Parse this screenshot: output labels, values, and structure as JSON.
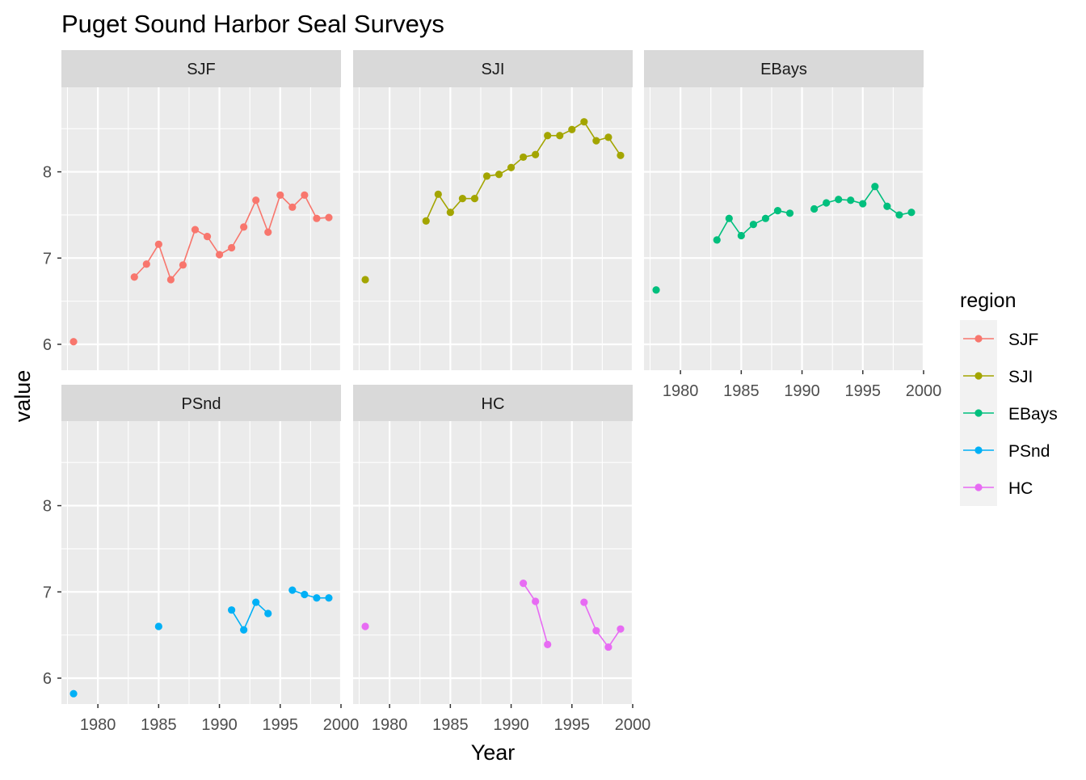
{
  "chart_data": {
    "type": "line",
    "title": "Puget Sound Harbor Seal Surveys",
    "xlabel": "Year",
    "ylabel": "value",
    "xlim": [
      1977,
      2000
    ],
    "ylim": [
      5.7,
      8.98
    ],
    "xticks": [
      1980,
      1985,
      1990,
      1995,
      2000
    ],
    "yticks": [
      6,
      7,
      8
    ],
    "grid": true,
    "legend": {
      "title": "region",
      "position": "right",
      "entries": [
        "SJF",
        "SJI",
        "EBays",
        "PSnd",
        "HC"
      ]
    },
    "panels": [
      {
        "name": "SJF",
        "color": "#F8766D",
        "points": [
          [
            1978,
            6.03
          ],
          [
            1983,
            6.78
          ],
          [
            1984,
            6.93
          ],
          [
            1985,
            7.16
          ],
          [
            1986,
            6.75
          ],
          [
            1987,
            6.92
          ],
          [
            1988,
            7.33
          ],
          [
            1989,
            7.25
          ],
          [
            1990,
            7.04
          ],
          [
            1991,
            7.12
          ],
          [
            1992,
            7.36
          ],
          [
            1993,
            7.67
          ],
          [
            1994,
            7.3
          ],
          [
            1995,
            7.73
          ],
          [
            1996,
            7.59
          ],
          [
            1997,
            7.73
          ],
          [
            1998,
            7.46
          ],
          [
            1999,
            7.47
          ]
        ]
      },
      {
        "name": "SJI",
        "color": "#A3A500",
        "points": [
          [
            1978,
            6.75
          ],
          [
            1983,
            7.43
          ],
          [
            1984,
            7.74
          ],
          [
            1985,
            7.53
          ],
          [
            1986,
            7.69
          ],
          [
            1987,
            7.69
          ],
          [
            1988,
            7.95
          ],
          [
            1989,
            7.97
          ],
          [
            1990,
            8.05
          ],
          [
            1991,
            8.17
          ],
          [
            1992,
            8.2
          ],
          [
            1993,
            8.42
          ],
          [
            1994,
            8.42
          ],
          [
            1995,
            8.49
          ],
          [
            1996,
            8.58
          ],
          [
            1997,
            8.36
          ],
          [
            1998,
            8.4
          ],
          [
            1999,
            8.19
          ]
        ]
      },
      {
        "name": "EBays",
        "color": "#00BF7D",
        "points": [
          [
            1978,
            6.63
          ],
          [
            1983,
            7.21
          ],
          [
            1984,
            7.46
          ],
          [
            1985,
            7.26
          ],
          [
            1986,
            7.39
          ],
          [
            1987,
            7.46
          ],
          [
            1988,
            7.55
          ],
          [
            1989,
            7.52
          ],
          [
            1990,
            null
          ],
          [
            1991,
            7.57
          ],
          [
            1992,
            7.64
          ],
          [
            1993,
            7.68
          ],
          [
            1994,
            7.67
          ],
          [
            1995,
            7.63
          ],
          [
            1996,
            7.83
          ],
          [
            1997,
            7.6
          ],
          [
            1998,
            7.5
          ],
          [
            1999,
            7.53
          ]
        ]
      },
      {
        "name": "PSnd",
        "color": "#00B0F6",
        "points": [
          [
            1978,
            5.82
          ],
          [
            1985,
            6.6
          ],
          [
            1991,
            6.79
          ],
          [
            1992,
            6.56
          ],
          [
            1993,
            6.88
          ],
          [
            1994,
            6.75
          ],
          [
            1995,
            null
          ],
          [
            1996,
            7.02
          ],
          [
            1997,
            6.97
          ],
          [
            1998,
            6.93
          ],
          [
            1999,
            6.93
          ]
        ]
      },
      {
        "name": "HC",
        "color": "#E76BF3",
        "points": [
          [
            1978,
            6.6
          ],
          [
            1991,
            7.1
          ],
          [
            1992,
            6.89
          ],
          [
            1993,
            6.39
          ],
          [
            1994,
            null
          ],
          [
            1996,
            6.88
          ],
          [
            1997,
            6.55
          ],
          [
            1998,
            6.36
          ],
          [
            1999,
            6.57
          ]
        ]
      }
    ]
  }
}
